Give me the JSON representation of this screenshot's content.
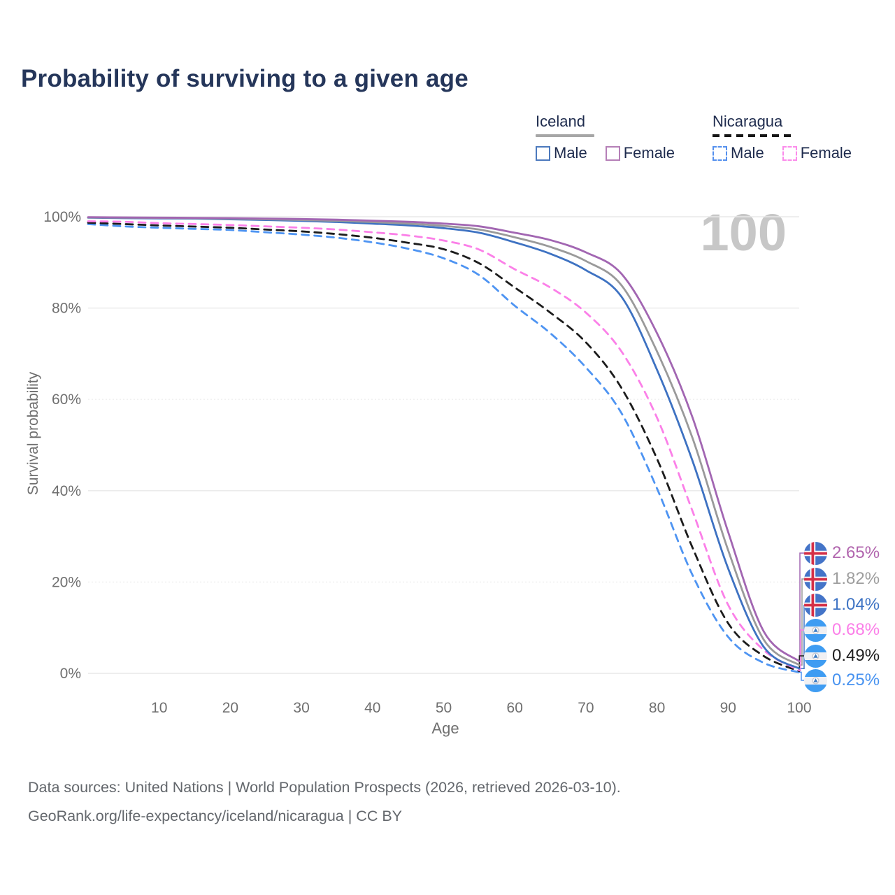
{
  "title": "Probability of surviving to a given age",
  "watermark": {
    "hovered_age": "100"
  },
  "legend": {
    "iceland": {
      "label": "Iceland",
      "male": "Male",
      "female": "Female"
    },
    "nicaragua": {
      "label": "Nicaragua",
      "male": "Male",
      "female": "Female"
    }
  },
  "footer": {
    "line1": "Data sources: United Nations | World Population Prospects (2026, retrieved 2026-03-10).",
    "line2": "GeoRank.org/life-expectancy/iceland/nicaragua | CC BY"
  },
  "colors": {
    "title_text": "#25365a",
    "axis_text": "#6f6f6f",
    "grid": "#e8e8e8",
    "watermark": "#c7c7c7",
    "iceland_male": "#3e72c2",
    "iceland_female": "#a266b2",
    "iceland_both": "#9a9a9a",
    "nicaragua_male": "#4e94f2",
    "nicaragua_female": "#fb80e8",
    "nicaragua_both": "#1c1c1c"
  },
  "chart_data": {
    "type": "line",
    "title": "Probability of surviving to a given age",
    "xlabel": "Age",
    "ylabel": "Survival probability",
    "xlim": [
      0,
      100
    ],
    "ylim": [
      0,
      100
    ],
    "grid": "horizontal",
    "legend_position": "top-right",
    "x_ticks": [
      {
        "label": "10",
        "value": 10
      },
      {
        "label": "20",
        "value": 20
      },
      {
        "label": "30",
        "value": 30
      },
      {
        "label": "40",
        "value": 40
      },
      {
        "label": "50",
        "value": 50
      },
      {
        "label": "60",
        "value": 60
      },
      {
        "label": "70",
        "value": 70
      },
      {
        "label": "80",
        "value": 80
      },
      {
        "label": "90",
        "value": 90
      },
      {
        "label": "100",
        "value": 100
      }
    ],
    "y_ticks": [
      {
        "label": "0%",
        "value": 0
      },
      {
        "label": "20%",
        "value": 20
      },
      {
        "label": "40%",
        "value": 40
      },
      {
        "label": "60%",
        "value": 60
      },
      {
        "label": "80%",
        "value": 80
      },
      {
        "label": "100%",
        "value": 100
      }
    ],
    "x": [
      0,
      5,
      10,
      15,
      20,
      25,
      30,
      35,
      40,
      45,
      50,
      55,
      60,
      65,
      70,
      75,
      80,
      85,
      90,
      95,
      100
    ],
    "series": [
      {
        "name": "Iceland Female",
        "country": "Iceland",
        "sex": "Female",
        "style": "solid",
        "color": "#a266b2",
        "label_color": "#b165ae",
        "flag": "iceland",
        "end_label": "2.65%",
        "values": [
          99.9,
          99.85,
          99.8,
          99.75,
          99.7,
          99.6,
          99.5,
          99.35,
          99.15,
          98.9,
          98.5,
          97.9,
          96.5,
          94.9,
          92.2,
          87.5,
          74.5,
          56.0,
          31.0,
          9.2,
          2.65
        ]
      },
      {
        "name": "Iceland Both sexes",
        "country": "Iceland",
        "sex": "Both",
        "style": "solid",
        "color": "#9a9a9a",
        "label_color": "#9e9e9e",
        "flag": "iceland",
        "end_label": "1.82%",
        "values": [
          99.85,
          99.8,
          99.75,
          99.7,
          99.6,
          99.45,
          99.3,
          99.1,
          98.85,
          98.5,
          98.0,
          97.2,
          95.5,
          93.4,
          90.3,
          85.0,
          70.5,
          51.5,
          27.0,
          7.4,
          1.82
        ]
      },
      {
        "name": "Iceland Male",
        "country": "Iceland",
        "sex": "Male",
        "style": "solid",
        "color": "#3e72c2",
        "label_color": "#3f74c4",
        "flag": "iceland",
        "end_label": "1.04%",
        "values": [
          99.8,
          99.7,
          99.65,
          99.6,
          99.45,
          99.3,
          99.1,
          98.85,
          98.5,
          98.1,
          97.5,
          96.5,
          94.4,
          91.9,
          88.3,
          82.5,
          66.5,
          46.5,
          23.0,
          5.8,
          1.04
        ]
      },
      {
        "name": "Nicaragua Female",
        "country": "Nicaragua",
        "sex": "Female",
        "style": "dashed",
        "color": "#fb80e8",
        "label_color": "#fb7ee8",
        "flag": "nicaragua",
        "end_label": "0.68%",
        "values": [
          99.0,
          98.9,
          98.6,
          98.4,
          98.2,
          97.9,
          97.6,
          97.2,
          96.6,
          95.9,
          94.8,
          92.8,
          88.5,
          84.5,
          79.0,
          70.5,
          56.0,
          35.5,
          15.0,
          5.1,
          0.68
        ]
      },
      {
        "name": "Nicaragua Both sexes",
        "country": "Nicaragua",
        "sex": "Both",
        "style": "dashed",
        "color": "#1c1c1c",
        "label_color": "#1f1f1f",
        "flag": "nicaragua",
        "end_label": "0.49%",
        "values": [
          98.7,
          98.4,
          98.1,
          97.85,
          97.6,
          97.2,
          96.8,
          96.2,
          95.4,
          94.3,
          92.9,
          89.8,
          84.5,
          79.0,
          72.5,
          62.5,
          47.0,
          27.5,
          11.0,
          3.8,
          0.49
        ]
      },
      {
        "name": "Nicaragua Male",
        "country": "Nicaragua",
        "sex": "Male",
        "style": "dashed",
        "color": "#4e94f2",
        "label_color": "#4792f0",
        "flag": "nicaragua",
        "end_label": "0.25%",
        "values": [
          98.4,
          97.9,
          97.6,
          97.35,
          97.1,
          96.6,
          96.1,
          95.4,
          94.4,
          93.0,
          90.9,
          87.2,
          80.5,
          74.5,
          67.0,
          57.0,
          40.5,
          21.5,
          8.0,
          2.3,
          0.25
        ]
      }
    ]
  }
}
